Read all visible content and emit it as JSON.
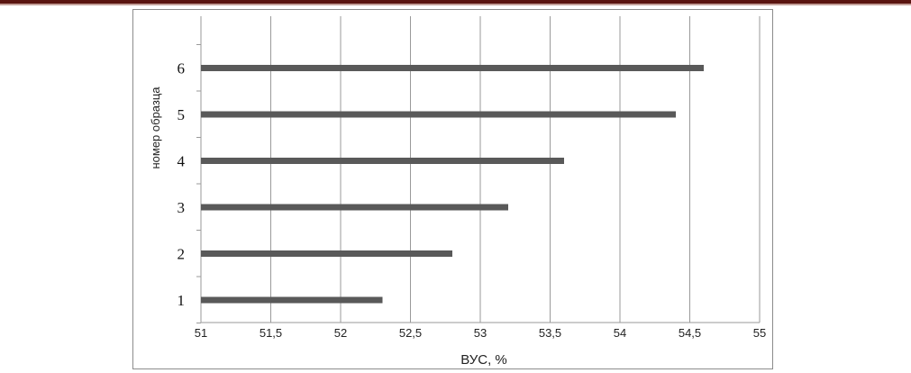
{
  "colors": {
    "bar": "#595959",
    "grid": "#9a9a9a",
    "top_rule_dark": "#5a1410",
    "top_rule_light": "#c4a09a"
  },
  "chart_data": {
    "type": "bar",
    "orientation": "horizontal",
    "categories": [
      "1",
      "2",
      "3",
      "4",
      "5",
      "6"
    ],
    "values": [
      52.3,
      52.8,
      53.2,
      53.6,
      54.4,
      54.6
    ],
    "xlabel": "ВУС, %",
    "ylabel": "номер образца",
    "xlim": [
      51,
      55
    ],
    "x_ticks": [
      "51",
      "51,5",
      "52",
      "52,5",
      "53",
      "53,5",
      "54",
      "54,5",
      "55"
    ],
    "grid": "vertical",
    "legend": "none"
  }
}
